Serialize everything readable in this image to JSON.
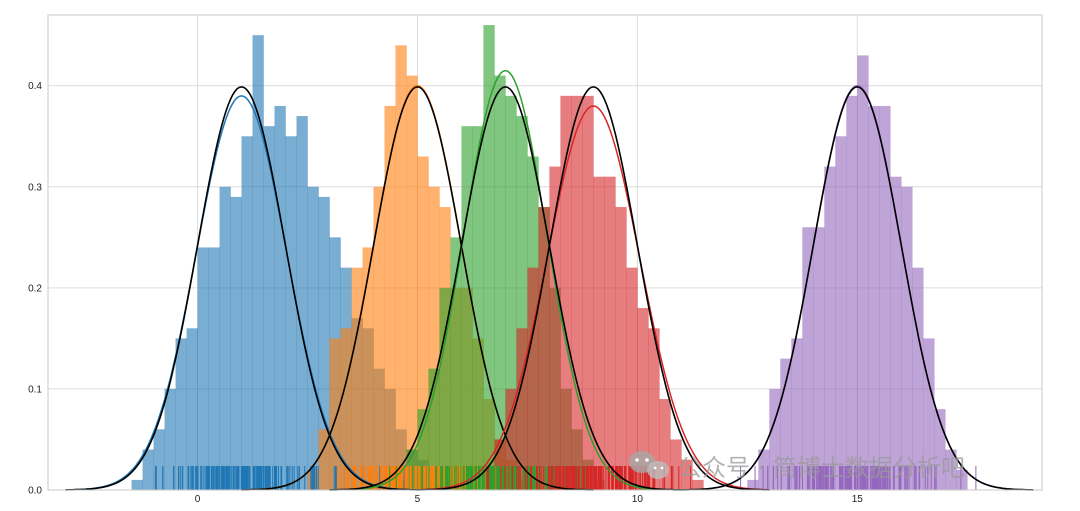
{
  "chart_data": {
    "type": "histogram",
    "title": "",
    "xlabel": "",
    "ylabel": "",
    "xlim": [
      -3.4,
      19.2
    ],
    "ylim": [
      0,
      0.47
    ],
    "grid": true,
    "x_ticks": [
      0,
      5,
      10,
      15
    ],
    "y_ticks": [
      0.0,
      0.1,
      0.2,
      0.3,
      0.4
    ],
    "x_tick_labels": [
      "0",
      "5",
      "10",
      "15"
    ],
    "y_tick_labels": [
      "0.0",
      "0.1",
      "0.2",
      "0.3",
      "0.4"
    ],
    "bin_width": 0.25,
    "series": [
      {
        "color": "#1f77b4",
        "fill": "#a9c8e2",
        "mean": 1.0,
        "std": 1.0,
        "kde_peak": 0.39,
        "kde_sigma": 1.02,
        "bin_start": -1.5,
        "heights": [
          0.01,
          0.04,
          0.06,
          0.1,
          0.15,
          0.16,
          0.24,
          0.24,
          0.3,
          0.29,
          0.35,
          0.45,
          0.36,
          0.38,
          0.35,
          0.37,
          0.3,
          0.29,
          0.25,
          0.22,
          0.17,
          0.16,
          0.12,
          0.1,
          0.06,
          0.04,
          0.03,
          0.01
        ]
      },
      {
        "color": "#ff7f0e",
        "fill": "#ffc299",
        "mean": 5.0,
        "std": 1.0,
        "kde_peak": 0.4,
        "kde_sigma": 1.0,
        "bin_start": 2.5,
        "heights": [
          0.02,
          0.06,
          0.15,
          0.16,
          0.22,
          0.24,
          0.3,
          0.38,
          0.44,
          0.41,
          0.33,
          0.3,
          0.28,
          0.2,
          0.2,
          0.15,
          0.09,
          0.05,
          0.03,
          0.01
        ]
      },
      {
        "color": "#2ca02c",
        "fill": "#a4d89b",
        "mean": 7.0,
        "std": 1.0,
        "kde_peak": 0.415,
        "kde_sigma": 0.95,
        "bin_start": 4.5,
        "heights": [
          0.01,
          0.04,
          0.08,
          0.12,
          0.2,
          0.25,
          0.36,
          0.36,
          0.46,
          0.41,
          0.39,
          0.37,
          0.33,
          0.28,
          0.2,
          0.1,
          0.06,
          0.03,
          0.01
        ]
      },
      {
        "color": "#d62728",
        "fill": "#eda2a2",
        "mean": 9.0,
        "std": 1.0,
        "kde_peak": 0.38,
        "kde_sigma": 1.05,
        "bin_start": 6.5,
        "heights": [
          0.02,
          0.05,
          0.1,
          0.16,
          0.22,
          0.28,
          0.32,
          0.39,
          0.39,
          0.39,
          0.31,
          0.31,
          0.28,
          0.22,
          0.18,
          0.16,
          0.09,
          0.05,
          0.03,
          0.01
        ]
      },
      {
        "color": "#9467bd",
        "fill": "#d2c0e3",
        "mean": 15.0,
        "std": 1.0,
        "kde_peak": 0.4,
        "kde_sigma": 1.0,
        "bin_start": 12.5,
        "heights": [
          0.01,
          0.04,
          0.1,
          0.13,
          0.15,
          0.26,
          0.26,
          0.32,
          0.35,
          0.39,
          0.43,
          0.38,
          0.38,
          0.31,
          0.3,
          0.22,
          0.15,
          0.08,
          0.04,
          0.02
        ]
      }
    ]
  },
  "watermark": {
    "text": "公众号 · 简博士数据分析吧",
    "icon": "wechat-icon"
  }
}
